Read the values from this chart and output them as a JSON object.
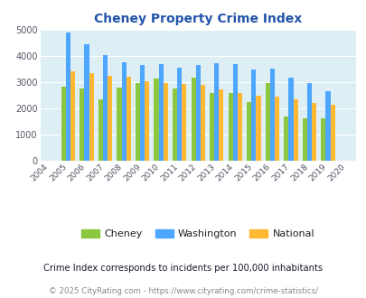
{
  "title": "Cheney Property Crime Index",
  "valid_years": [
    2005,
    2006,
    2007,
    2008,
    2009,
    2010,
    2011,
    2012,
    2013,
    2014,
    2015,
    2016,
    2017,
    2018,
    2019
  ],
  "all_years": [
    2004,
    2005,
    2006,
    2007,
    2008,
    2009,
    2010,
    2011,
    2012,
    2013,
    2014,
    2015,
    2016,
    2017,
    2018,
    2019,
    2020
  ],
  "cheney": [
    2820,
    2760,
    2360,
    2790,
    2970,
    3150,
    2770,
    3180,
    2580,
    2590,
    2260,
    2980,
    1700,
    1610,
    1620
  ],
  "washington": [
    4900,
    4460,
    4020,
    3760,
    3650,
    3700,
    3570,
    3660,
    3710,
    3700,
    3480,
    3510,
    3160,
    2970,
    2650
  ],
  "national": [
    3430,
    3340,
    3240,
    3220,
    3050,
    2960,
    2940,
    2900,
    2730,
    2600,
    2490,
    2460,
    2350,
    2200,
    2130
  ],
  "cheney_color": "#8dc63f",
  "washington_color": "#4da6ff",
  "national_color": "#ffb833",
  "bg_color": "#ddeef5",
  "ylim": [
    0,
    5000
  ],
  "yticks": [
    0,
    1000,
    2000,
    3000,
    4000,
    5000
  ],
  "subtitle": "Crime Index corresponds to incidents per 100,000 inhabitants",
  "footer": "© 2025 CityRating.com - https://www.cityrating.com/crime-statistics/",
  "legend_labels": [
    "Cheney",
    "Washington",
    "National"
  ],
  "title_color": "#2255aa",
  "subtitle_color": "#1a1a2e",
  "footer_color": "#888888"
}
